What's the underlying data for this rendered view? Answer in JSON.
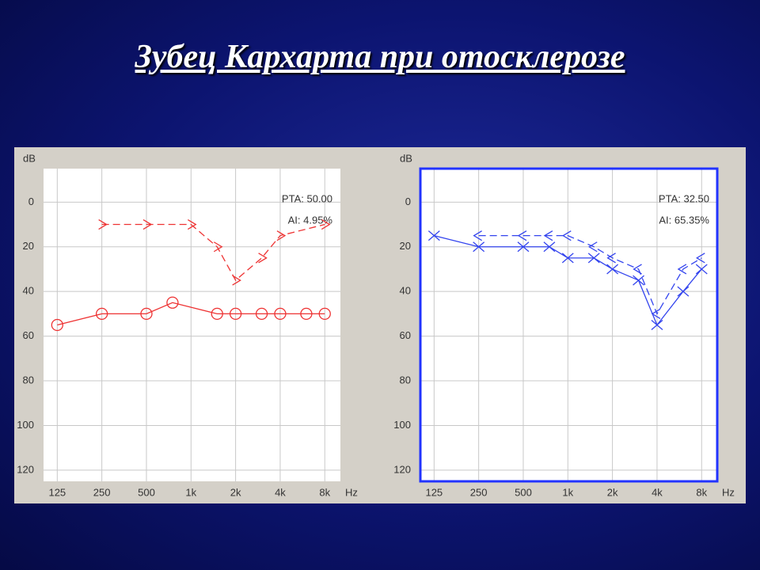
{
  "title": "Зубец Кархарта при отосклерозе",
  "chart_data": [
    {
      "type": "line",
      "log_x": true,
      "ylabel": "dB",
      "xlabel": "Hz",
      "xlim": [
        101,
        10200
      ],
      "ylim": [
        -15,
        125
      ],
      "y_inverted": true,
      "grid": true,
      "xticks": [
        125,
        250,
        500,
        {
          "value": 1000,
          "label": "1k"
        },
        {
          "value": 2000,
          "label": "2k"
        },
        {
          "value": 4000,
          "label": "4k"
        },
        {
          "value": 8000,
          "label": "8k"
        }
      ],
      "yticks": [
        0,
        20,
        40,
        60,
        80,
        100,
        120
      ],
      "annotations": [
        "PTA: 50.00",
        "AI: 4.95%"
      ],
      "series": [
        {
          "color": "#ee3333",
          "marker": "circle",
          "dashed": false,
          "x": [
            125,
            250,
            500,
            750,
            1500,
            2000,
            3000,
            4000,
            6000,
            8000
          ],
          "values": [
            55,
            50,
            50,
            45,
            50,
            50,
            50,
            50,
            50,
            50
          ]
        },
        {
          "color": "#ee3333",
          "marker": "arrow-right",
          "dashed": true,
          "x": [
            250,
            500,
            1000,
            1500,
            2000,
            3000,
            4000,
            8000
          ],
          "values": [
            10,
            10,
            10,
            20,
            35,
            25,
            15,
            10
          ]
        }
      ]
    },
    {
      "type": "line",
      "log_x": true,
      "ylabel": "dB",
      "xlabel": "Hz",
      "xlim": [
        101,
        10200
      ],
      "ylim": [
        -15,
        125
      ],
      "y_inverted": true,
      "grid": true,
      "frame_color": "#2233ff",
      "xticks": [
        125,
        250,
        500,
        {
          "value": 1000,
          "label": "1k"
        },
        {
          "value": 2000,
          "label": "2k"
        },
        {
          "value": 4000,
          "label": "4k"
        },
        {
          "value": 8000,
          "label": "8k"
        }
      ],
      "yticks": [
        0,
        20,
        40,
        60,
        80,
        100,
        120
      ],
      "annotations": [
        "PTA: 32.50",
        "AI: 65.35%"
      ],
      "series": [
        {
          "color": "#3344ee",
          "marker": "cross",
          "dashed": false,
          "x": [
            125,
            250,
            500,
            750,
            1000,
            1500,
            2000,
            3000,
            4000,
            6000,
            8000
          ],
          "values": [
            15,
            20,
            20,
            20,
            25,
            25,
            30,
            35,
            55,
            40,
            30
          ]
        },
        {
          "color": "#3344ee",
          "marker": "arrow-left",
          "dashed": true,
          "x": [
            250,
            500,
            750,
            1000,
            1500,
            2000,
            3000,
            4000,
            6000,
            8000
          ],
          "values": [
            15,
            15,
            15,
            15,
            20,
            25,
            30,
            50,
            30,
            25
          ]
        }
      ]
    }
  ]
}
